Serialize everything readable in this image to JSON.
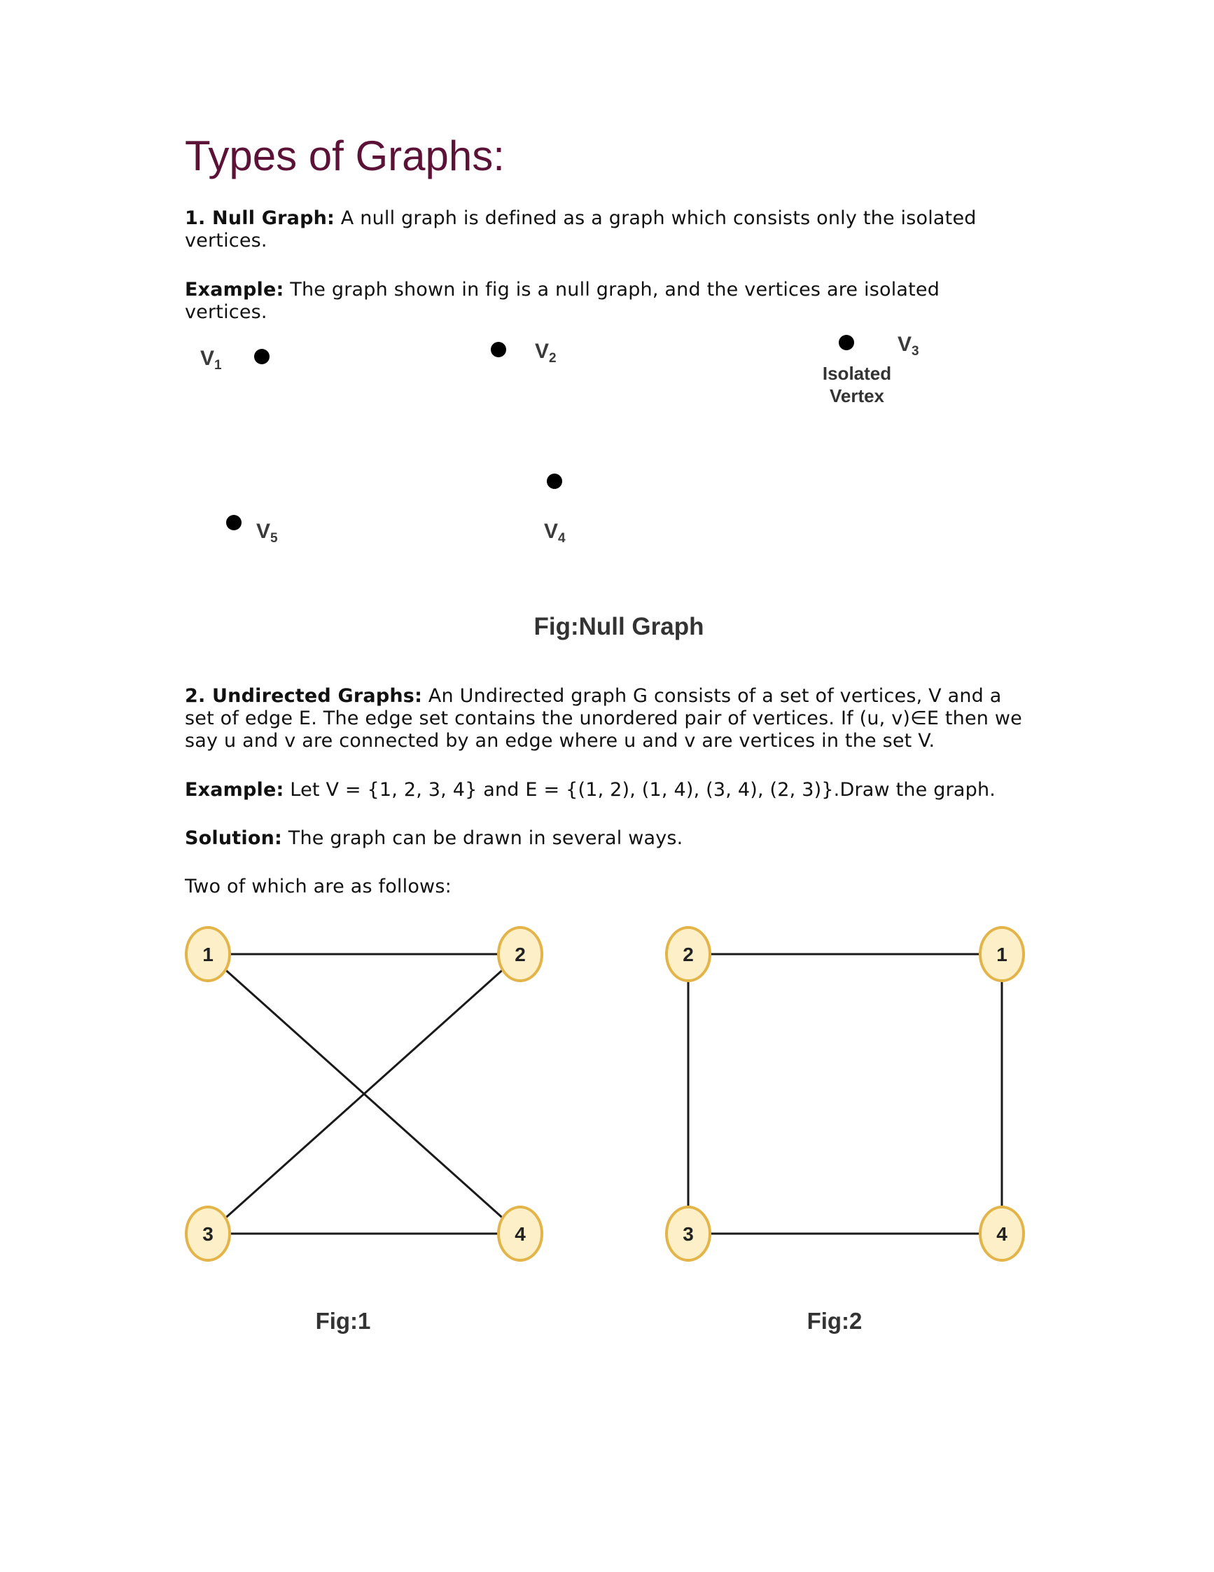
{
  "title": "Types of Graphs:",
  "null_graph": {
    "heading": "1. Null Graph:",
    "text": " A null graph is defined as a graph which consists only the isolated vertices.",
    "example_label": "Example:",
    "example_text": " The graph shown in fig is a null graph, and the vertices are isolated vertices.",
    "figure": {
      "vertices": [
        {
          "main": "V",
          "sub": "1"
        },
        {
          "main": "V",
          "sub": "2"
        },
        {
          "main": "V",
          "sub": "3"
        },
        {
          "main": "V",
          "sub": "4"
        },
        {
          "main": "V",
          "sub": "5"
        }
      ],
      "annotation_line1": "Isolated",
      "annotation_line2": "Vertex",
      "caption": "Fig:Null Graph"
    }
  },
  "undirected": {
    "heading": "2. Undirected Graphs:",
    "text": " An Undirected graph G consists of a set of vertices, V and a set of edge E. The edge set contains the unordered pair of vertices. If (u, v)∈E then we say u and v are connected by an edge where u and v are vertices in the set V.",
    "example_label": "Example:",
    "example_text": " Let V = {1, 2, 3, 4} and E = {(1, 2), (1, 4), (3, 4), (2, 3)}.Draw the graph.",
    "solution_label": "Solution:",
    "solution_text": " The graph can be drawn in several ways.",
    "two_of_which": "Two of which are as follows:",
    "fig1": {
      "nodes": [
        "1",
        "2",
        "3",
        "4"
      ],
      "caption": "Fig:1"
    },
    "fig2": {
      "nodes": [
        "2",
        "1",
        "3",
        "4"
      ],
      "caption": "Fig:2"
    }
  },
  "colors": {
    "title": "#5b1236",
    "node_fill": "#fdf0c8",
    "node_stroke": "#e2b44a"
  }
}
